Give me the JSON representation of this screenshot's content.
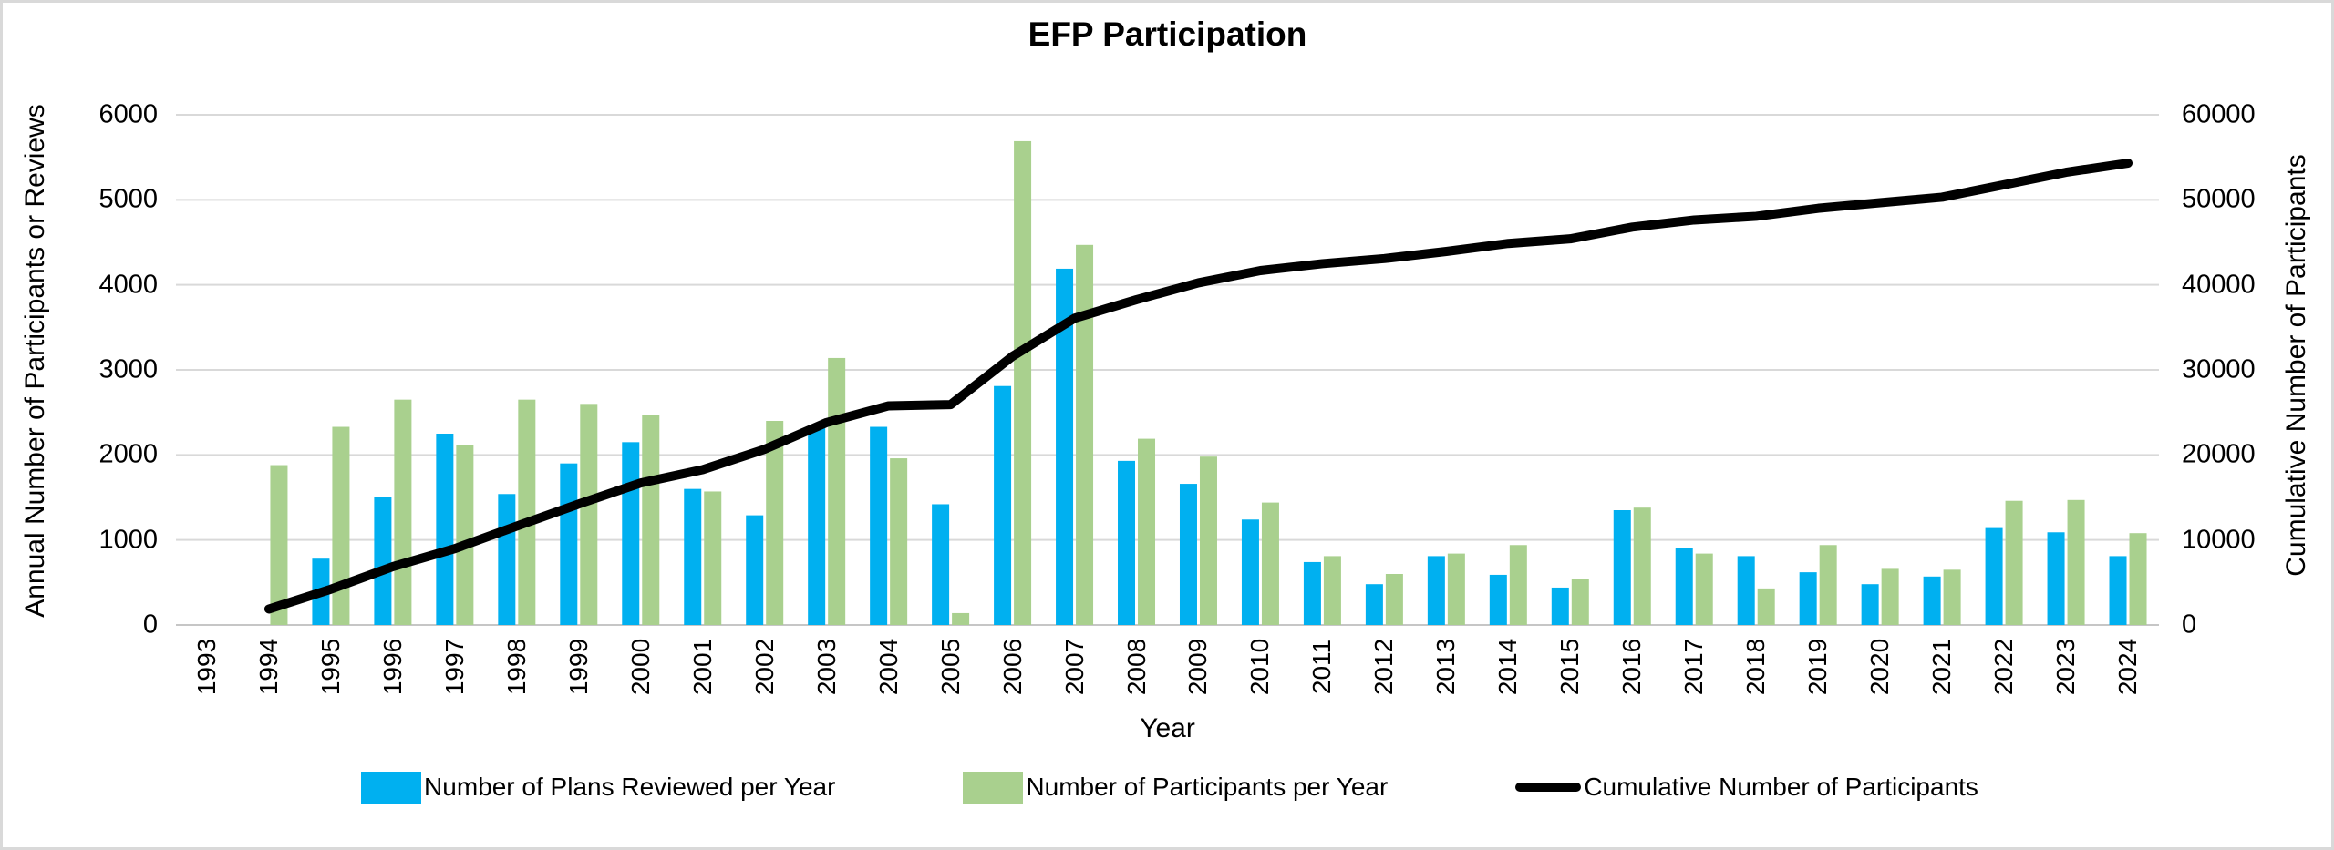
{
  "title": "EFP Participation",
  "axes": {
    "x_title": "Year",
    "y_left_title": "Annual Number of Participants or Reviews",
    "y_right_title": "Cumulative Number of Participants",
    "y_left_ticks": [
      "0",
      "1000",
      "2000",
      "3000",
      "4000",
      "5000",
      "6000"
    ],
    "y_right_ticks": [
      "0",
      "10000",
      "20000",
      "30000",
      "40000",
      "50000",
      "60000"
    ]
  },
  "colors": {
    "plans_bar": "#00B0F0",
    "participants_bar": "#A9D08E",
    "cumulative_line": "#000000",
    "gridline": "#D9D9D9",
    "baseline": "#C6C6C6",
    "frame_border": "#D9D9D9"
  },
  "chart_data": {
    "type": "combo",
    "title": "EFP Participation",
    "xlabel": "Year",
    "ylabel_left": "Annual Number of Participants or Reviews",
    "ylabel_right": "Cumulative Number of Participants",
    "ylim_left": [
      0,
      6000
    ],
    "ylim_right": [
      0,
      60000
    ],
    "grid": "horizontal",
    "legend_position": "bottom",
    "x": [
      1993,
      1994,
      1995,
      1996,
      1997,
      1998,
      1999,
      2000,
      2001,
      2002,
      2003,
      2004,
      2005,
      2006,
      2007,
      2008,
      2009,
      2010,
      2011,
      2012,
      2013,
      2014,
      2015,
      2016,
      2017,
      2018,
      2019,
      2020,
      2021,
      2022,
      2023,
      2024
    ],
    "series": [
      {
        "name": "Number of Plans Reviewed per Year",
        "type": "bar",
        "axis": "left",
        "color": "#00B0F0",
        "values": [
          null,
          null,
          780,
          1510,
          2250,
          1540,
          1900,
          2150,
          1600,
          1290,
          2320,
          2330,
          1420,
          2810,
          4190,
          1930,
          1660,
          1240,
          740,
          480,
          810,
          590,
          440,
          1350,
          900,
          810,
          620,
          480,
          570,
          1140,
          1090,
          810
        ]
      },
      {
        "name": "Number of Participants per Year",
        "type": "bar",
        "axis": "left",
        "color": "#A9D08E",
        "values": [
          null,
          1880,
          2330,
          2650,
          2120,
          2650,
          2600,
          2470,
          1570,
          2400,
          3140,
          1960,
          140,
          5690,
          4470,
          2190,
          1980,
          1440,
          810,
          600,
          840,
          940,
          540,
          1380,
          840,
          430,
          940,
          660,
          650,
          1460,
          1470,
          1080
        ]
      },
      {
        "name": "Cumulative Number of Participants",
        "type": "line",
        "axis": "right",
        "color": "#000000",
        "values": [
          null,
          1880,
          4210,
          6860,
          8980,
          11630,
          14230,
          16700,
          18270,
          20670,
          23810,
          25770,
          25910,
          31600,
          36070,
          38260,
          40240,
          41680,
          42490,
          43090,
          43930,
          44870,
          45410,
          46790,
          47630,
          48060,
          49000,
          49660,
          50310,
          51770,
          53240,
          54320
        ]
      }
    ]
  }
}
